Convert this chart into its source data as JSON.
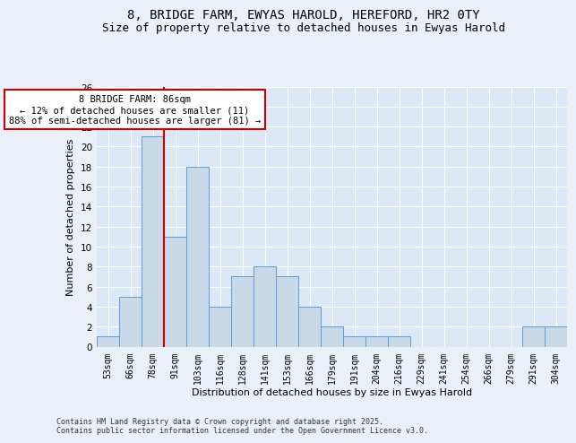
{
  "title1": "8, BRIDGE FARM, EWYAS HAROLD, HEREFORD, HR2 0TY",
  "title2": "Size of property relative to detached houses in Ewyas Harold",
  "xlabel": "Distribution of detached houses by size in Ewyas Harold",
  "ylabel": "Number of detached properties",
  "categories": [
    "53sqm",
    "66sqm",
    "78sqm",
    "91sqm",
    "103sqm",
    "116sqm",
    "128sqm",
    "141sqm",
    "153sqm",
    "166sqm",
    "179sqm",
    "191sqm",
    "204sqm",
    "216sqm",
    "229sqm",
    "241sqm",
    "254sqm",
    "266sqm",
    "279sqm",
    "291sqm",
    "304sqm"
  ],
  "values": [
    1,
    5,
    21,
    11,
    18,
    4,
    7,
    8,
    7,
    4,
    2,
    1,
    1,
    1,
    0,
    0,
    0,
    0,
    0,
    2,
    2
  ],
  "bar_color": "#c9d9e8",
  "bar_edge_color": "#5b9bd5",
  "vline_color": "#cc0000",
  "annotation_text": "8 BRIDGE FARM: 86sqm\n← 12% of detached houses are smaller (11)\n88% of semi-detached houses are larger (81) →",
  "annotation_box_color": "#cc0000",
  "ylim": [
    0,
    26
  ],
  "yticks": [
    0,
    2,
    4,
    6,
    8,
    10,
    12,
    14,
    16,
    18,
    20,
    22,
    24,
    26
  ],
  "footer": "Contains HM Land Registry data © Crown copyright and database right 2025.\nContains public sector information licensed under the Open Government Licence v3.0.",
  "bg_color": "#eaf0f8",
  "plot_bg_color": "#dce8f5",
  "grid_color": "#ffffff",
  "title_fontsize": 10,
  "subtitle_fontsize": 9,
  "tick_fontsize": 7,
  "ylabel_fontsize": 8,
  "xlabel_fontsize": 8,
  "footer_fontsize": 6,
  "annot_fontsize": 7.5
}
